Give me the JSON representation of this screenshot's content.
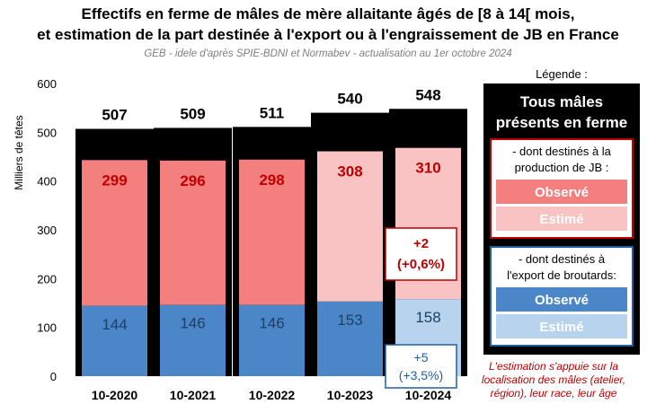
{
  "chart_data": {
    "type": "bar",
    "title_line1": "Effectifs en ferme de mâles de mère allaitante âgés de [8 à 14[ mois,",
    "title_line2": "et estimation de la part destinée à l'export ou à l'engraissement de JB en France",
    "subtitle": "GEB - idele d'après SPIE-BDNI et Normabev - actualisation au 1er octobre 2024",
    "ylabel": "Milliers de têtes",
    "ylim": [
      0,
      600
    ],
    "yticks": [
      0,
      100,
      200,
      300,
      400,
      500,
      600
    ],
    "categories": [
      "10-2020",
      "10-2021",
      "10-2022",
      "10-2023",
      "10-2024"
    ],
    "series": [
      {
        "name": "Tous mâles présents en ferme",
        "values": [
          507,
          509,
          511,
          540,
          548
        ],
        "color": "#000000"
      },
      {
        "name": "dont destinés à la production de JB",
        "values": [
          299,
          296,
          298,
          308,
          310
        ],
        "estimated": [
          false,
          false,
          false,
          true,
          true
        ],
        "color_observed": "#f47f7f",
        "color_estimated": "#f9c3c3"
      },
      {
        "name": "dont destinés à l'export de broutards",
        "values": [
          144,
          146,
          146,
          153,
          158
        ],
        "estimated": [
          false,
          false,
          false,
          false,
          true
        ],
        "color_observed": "#4a86c8",
        "color_estimated": "#b8d3ee"
      }
    ],
    "annotations": [
      {
        "text_line1": "+2",
        "text_line2": "(+0,6%)",
        "category": "10-2024",
        "color": "#c00000"
      },
      {
        "text_line1": "+5",
        "text_line2": "(+3,5%)",
        "category": "10-2024",
        "color": "#1f5fa0"
      }
    ],
    "legend": {
      "title": "Légende :",
      "all_line1": "Tous mâles",
      "all_line2": "présents en ferme",
      "jb_line1": "- dont destinés à la",
      "jb_line2": "production de JB :",
      "export_line1": "- dont destinés à",
      "export_line2": "l'export de broutards:",
      "observed": "Observé",
      "estimated": "Estimé"
    },
    "note_lines": [
      "L'estimation s'appuie sur la",
      "localisation des mâles (atelier,",
      "région), leur race, leur âge"
    ]
  }
}
